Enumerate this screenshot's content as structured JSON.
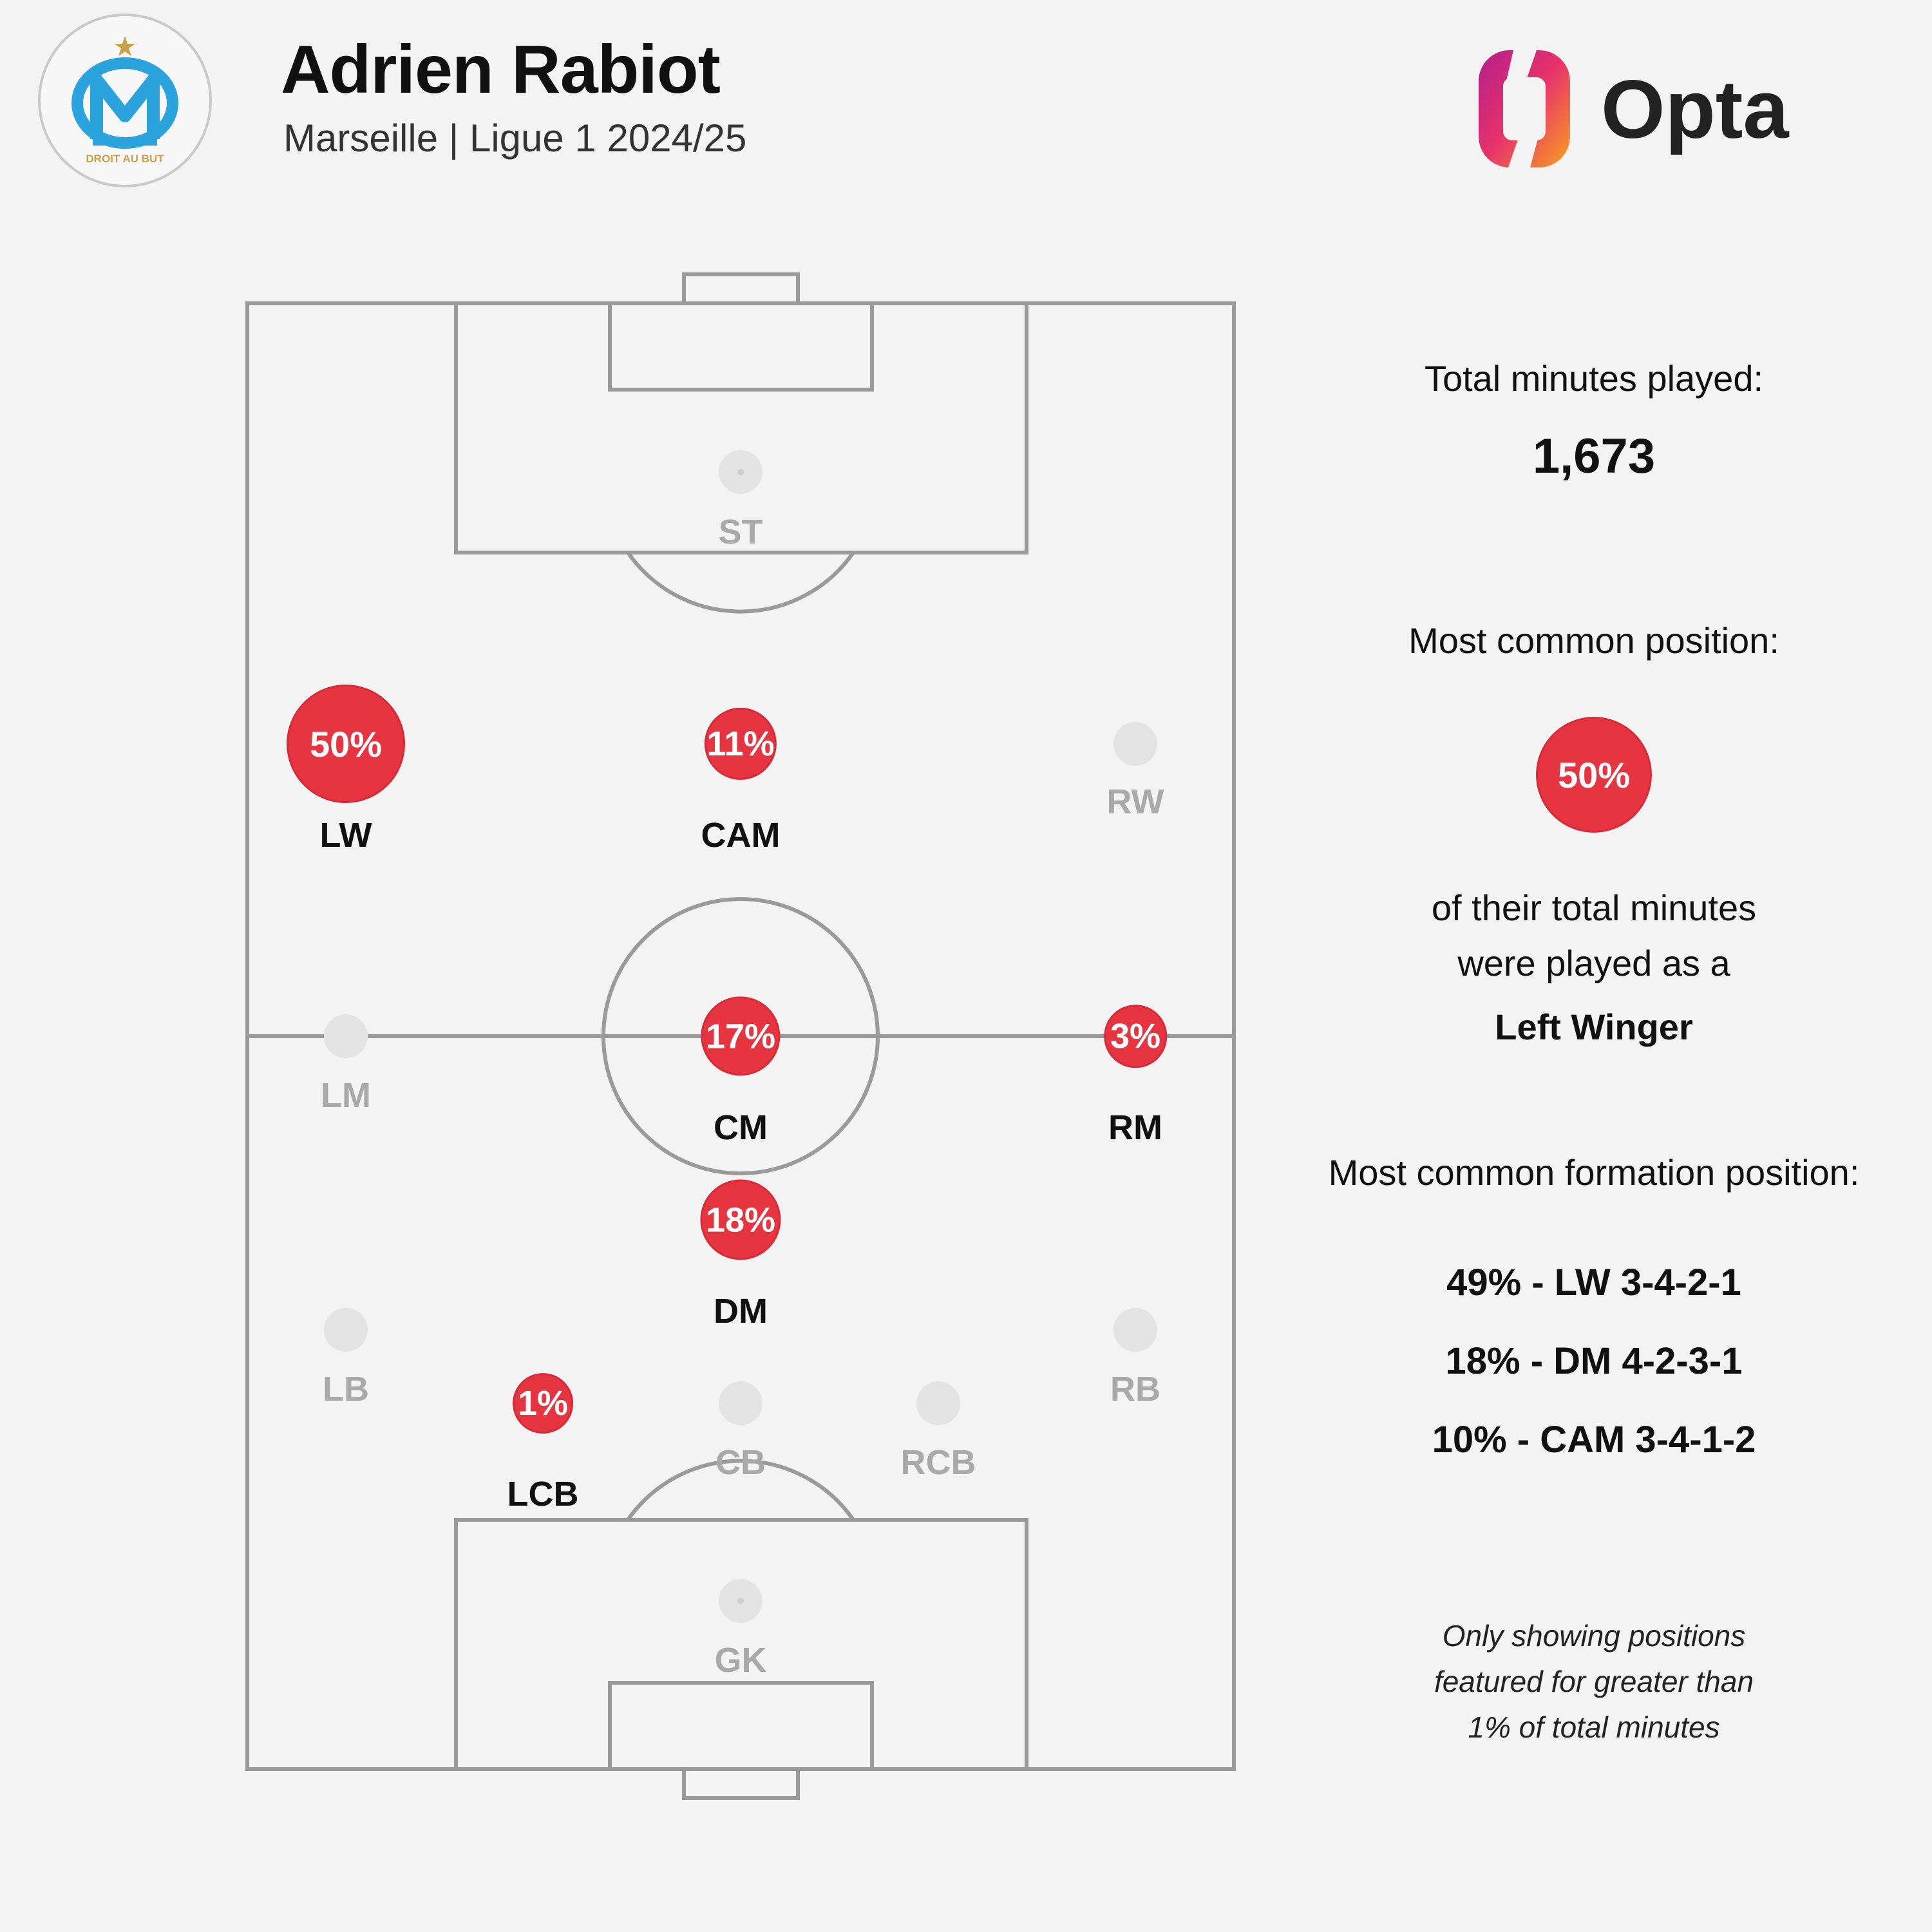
{
  "header": {
    "player_name": "Adrien Rabiot",
    "subtitle": "Marseille | Ligue 1 2024/25",
    "crest_text": "DROIT AU BUT",
    "brand": "Opta"
  },
  "colors": {
    "accent_red": "#e63441",
    "inactive_grey": "#e3e3e3",
    "crest_blue": "#2ba3dc",
    "crest_gold": "#c9a14a"
  },
  "positions": [
    {
      "code": "ST",
      "pct": null,
      "value": 0
    },
    {
      "code": "LW",
      "pct": "50%",
      "value": 50
    },
    {
      "code": "CAM",
      "pct": "11%",
      "value": 11
    },
    {
      "code": "RW",
      "pct": null,
      "value": 0
    },
    {
      "code": "LM",
      "pct": null,
      "value": 0
    },
    {
      "code": "CM",
      "pct": "17%",
      "value": 17
    },
    {
      "code": "RM",
      "pct": "3%",
      "value": 3
    },
    {
      "code": "DM",
      "pct": "18%",
      "value": 18
    },
    {
      "code": "LB",
      "pct": null,
      "value": 0
    },
    {
      "code": "LCB",
      "pct": "1%",
      "value": 1
    },
    {
      "code": "CB",
      "pct": null,
      "value": 0
    },
    {
      "code": "RCB",
      "pct": null,
      "value": 0
    },
    {
      "code": "RB",
      "pct": null,
      "value": 0
    },
    {
      "code": "GK",
      "pct": null,
      "value": 0
    }
  ],
  "panel": {
    "total_minutes_label": "Total minutes played:",
    "total_minutes_value": "1,673",
    "common_position_label": "Most common position:",
    "common_position_pct": "50%",
    "common_position_line1": "of their total minutes",
    "common_position_line2": "were played as a",
    "common_position_name": "Left Winger",
    "formation_label": "Most common formation position:",
    "formations": [
      "49% - LW 3-4-2-1",
      "18% - DM 4-2-3-1",
      "10% - CAM 3-4-1-2"
    ],
    "note_lines": [
      "Only showing positions",
      "featured for greater than",
      "1% of total minutes"
    ]
  }
}
